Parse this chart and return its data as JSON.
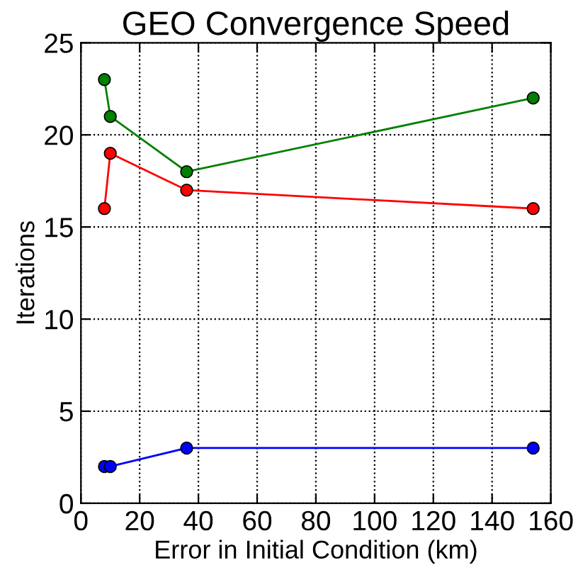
{
  "chart_data": {
    "type": "line",
    "title": "GEO Convergence Speed",
    "xlabel": "Error in Initial Condition (km)",
    "ylabel": "Iterations",
    "x": [
      8,
      10,
      36,
      154
    ],
    "series": [
      {
        "color": "#0000ff",
        "values": [
          2,
          2,
          3,
          3
        ]
      },
      {
        "color": "#ff0000",
        "values": [
          16,
          19,
          17,
          16
        ]
      },
      {
        "color": "#008000",
        "values": [
          23,
          21,
          18,
          22
        ]
      }
    ],
    "xlim": [
      0,
      160
    ],
    "xticks": [
      0,
      20,
      40,
      60,
      80,
      100,
      120,
      140,
      160
    ],
    "ylim": [
      0,
      25
    ],
    "yticks": [
      0,
      5,
      10,
      15,
      20,
      25
    ],
    "grid": true,
    "marker": "circle",
    "line_style": "solid"
  }
}
